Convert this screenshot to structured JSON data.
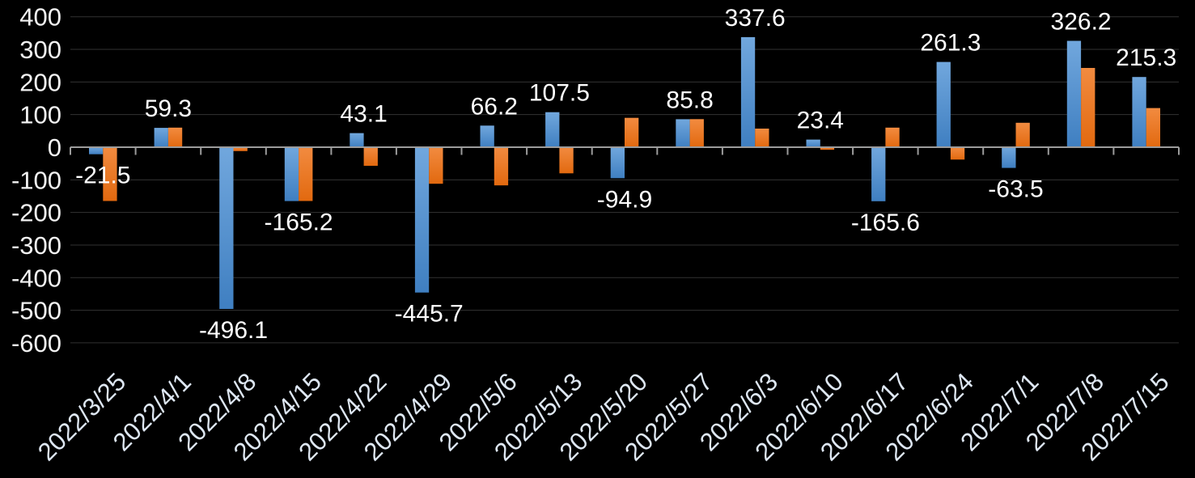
{
  "chart_data": {
    "type": "bar",
    "title": "",
    "categories": [
      "2022/3/25",
      "2022/4/1",
      "2022/4/8",
      "2022/4/15",
      "2022/4/22",
      "2022/4/29",
      "2022/5/6",
      "2022/5/13",
      "2022/5/20",
      "2022/5/27",
      "2022/6/3",
      "2022/6/10",
      "2022/6/17",
      "2022/6/24",
      "2022/7/1",
      "2022/7/8",
      "2022/7/15"
    ],
    "series": [
      {
        "name": "blue-series",
        "color_top": "#71A7DD",
        "color_bottom": "#3F7FC1",
        "values": [
          -21.5,
          59.3,
          -496.1,
          -165.2,
          43.1,
          -445.7,
          66.2,
          107.5,
          -94.9,
          85.8,
          337.6,
          23.4,
          -165.6,
          261.3,
          -63.5,
          326.2,
          215.3
        ],
        "data_labels": [
          "-21.5",
          "59.3",
          "-496.1",
          "-165.2",
          "43.1",
          "-445.7",
          "66.2",
          "107.5",
          "-94.9",
          "85.8",
          "337.6",
          "23.4",
          "-165.6",
          "261.3",
          "-63.5",
          "326.2",
          "215.3"
        ],
        "show_labels": true
      },
      {
        "name": "orange-series",
        "color_top": "#F28B40",
        "color_bottom": "#E2690F",
        "values": [
          -165,
          60,
          -12,
          -165,
          -57,
          -112,
          -117,
          -80,
          90,
          86,
          57,
          -8,
          60,
          -38,
          75,
          243,
          120
        ],
        "data_labels": [],
        "show_labels": false
      }
    ],
    "y_axis": {
      "min": -600,
      "max": 400,
      "step": 100,
      "tick_labels": [
        "400",
        "300",
        "200",
        "100",
        "0",
        "-100",
        "-200",
        "-300",
        "-400",
        "-500",
        "-600"
      ]
    },
    "x_axis": {
      "label_rotation_deg": -45
    },
    "legend": "none",
    "grid": true,
    "style": {
      "background": "#000000",
      "gridline_color": "#323232",
      "axis_line_color": "#9C9C9C",
      "y_tick_label_color": "#F2F2F2",
      "data_label_color": "#FFFFFF",
      "x_tick_label_color": "#DEE7F2"
    }
  }
}
